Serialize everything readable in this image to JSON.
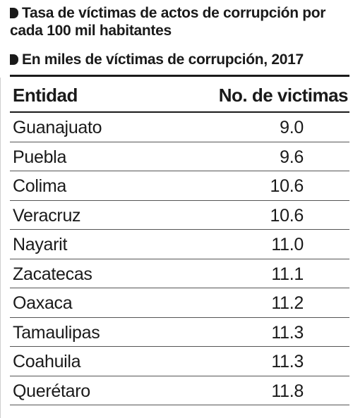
{
  "chart_data": {
    "type": "table",
    "title": "Tasa de víctimas de actos de corrupción por cada 100 mil habitantes",
    "subtitle": "En miles de víctimas de corrupción, 2017",
    "columns": [
      "Entidad",
      "No. de victimas"
    ],
    "rows": [
      {
        "entity": "Guanajuato",
        "value": "9.0"
      },
      {
        "entity": "Puebla",
        "value": "9.6"
      },
      {
        "entity": "Colima",
        "value": "10.6"
      },
      {
        "entity": "Veracruz",
        "value": "10.6"
      },
      {
        "entity": "Nayarit",
        "value": "11.0"
      },
      {
        "entity": "Zacatecas",
        "value": "11.1"
      },
      {
        "entity": "Oaxaca",
        "value": "11.2"
      },
      {
        "entity": "Tamaulipas",
        "value": "11.3"
      },
      {
        "entity": "Coahuila",
        "value": "11.3"
      },
      {
        "entity": "Querétaro",
        "value": "11.8"
      }
    ]
  }
}
